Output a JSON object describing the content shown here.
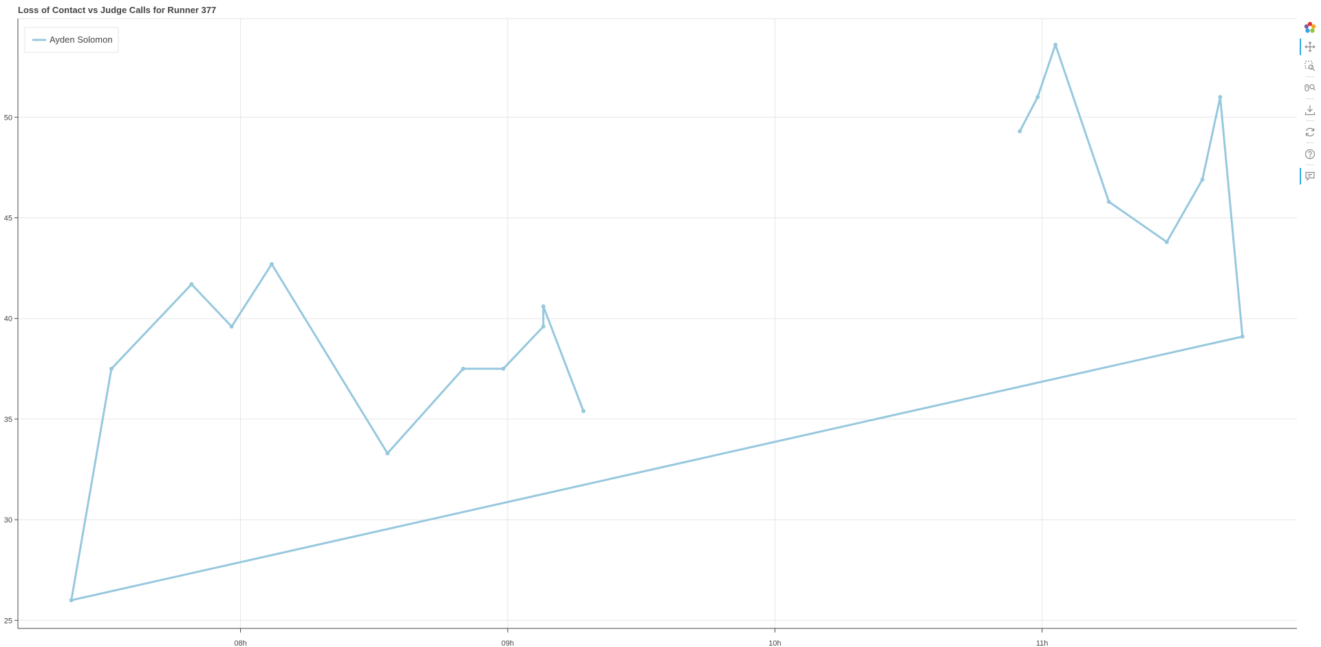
{
  "title": "Loss of Contact vs Judge Calls for Runner 377",
  "colors": {
    "series": "#97c8de",
    "grid": "#e5e5e5",
    "axis": "#444444",
    "text": "#444444"
  },
  "toolbar": [
    {
      "name": "bokeh-logo-icon",
      "active": false
    },
    {
      "name": "pan-icon",
      "active": true
    },
    {
      "name": "box-zoom-icon",
      "active": false
    },
    {
      "name": "wheel-zoom-icon",
      "active": false
    },
    {
      "name": "save-icon",
      "active": false
    },
    {
      "name": "reset-icon",
      "active": false
    },
    {
      "name": "help-icon",
      "active": false
    },
    {
      "name": "hover-icon",
      "active": true
    }
  ],
  "chart_data": {
    "type": "line",
    "title": "Loss of Contact vs Judge Calls for Runner 377",
    "xlabel": "",
    "ylabel": "",
    "x_axis": "time of day",
    "xlim": [
      "07:10",
      "11:58"
    ],
    "ylim": [
      24.6,
      54.9
    ],
    "x_tick_labels": [
      "08h",
      "09h",
      "10h",
      "11h"
    ],
    "x_tick_values": [
      "08:00",
      "09:00",
      "10:00",
      "11:00"
    ],
    "y_ticks": [
      25,
      30,
      35,
      40,
      45,
      50
    ],
    "grid": true,
    "legend_position": "top-left",
    "markers": true,
    "series": [
      {
        "name": "Ayden Solomon",
        "points": [
          [
            "09:17",
            35.4
          ],
          [
            "09:08",
            40.6
          ],
          [
            "09:08",
            39.6
          ],
          [
            "08:59",
            37.5
          ],
          [
            "08:50",
            37.5
          ],
          [
            "08:33",
            33.3
          ],
          [
            "08:07",
            42.7
          ],
          [
            "07:58",
            39.6
          ],
          [
            "07:49",
            41.7
          ],
          [
            "07:31",
            37.5
          ],
          [
            "07:22",
            26.0
          ],
          [
            "11:45",
            39.1
          ],
          [
            "11:40",
            51.0
          ],
          [
            "11:36",
            46.9
          ],
          [
            "11:28",
            43.8
          ],
          [
            "11:15",
            45.8
          ],
          [
            "11:03",
            53.6
          ],
          [
            "10:59",
            51.0
          ],
          [
            "10:55",
            49.3
          ]
        ]
      }
    ]
  }
}
